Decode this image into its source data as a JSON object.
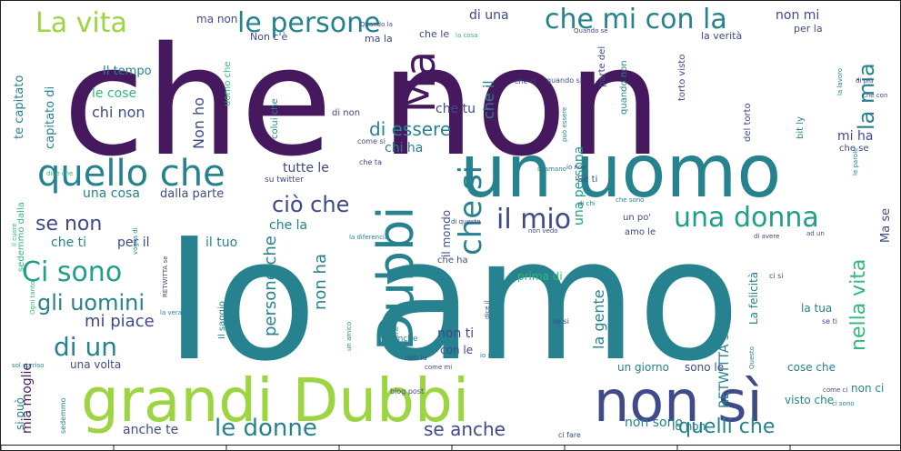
{
  "palette": {
    "dark_purple": "#46195f",
    "indigo": "#3e4a89",
    "blue": "#31688e",
    "teal": "#26828e",
    "teal_green": "#1f9e89",
    "green": "#35b779",
    "light_green": "#6ece58",
    "lime": "#9cd541"
  },
  "words": [
    {
      "text": "che non",
      "color": "dark_purple",
      "size": 165,
      "rotate": 0
    },
    {
      "text": "Io amo",
      "color": "teal",
      "size": 185,
      "rotate": 0
    },
    {
      "text": "un uomo",
      "color": "teal",
      "size": 80,
      "rotate": 0
    },
    {
      "text": "grandi Dubbi",
      "color": "lime",
      "size": 66,
      "rotate": 0
    },
    {
      "text": "non sì",
      "color": "indigo",
      "size": 62,
      "rotate": 0
    },
    {
      "text": "Dubbi",
      "color": "teal",
      "size": 54,
      "rotate": -90
    },
    {
      "text": "quello che",
      "color": "teal",
      "size": 40,
      "rotate": 0
    },
    {
      "text": "Ma",
      "color": "dark_purple",
      "size": 46,
      "rotate": -90
    },
    {
      "text": "La vita",
      "color": "lime",
      "size": 30,
      "rotate": 0
    },
    {
      "text": "le persone",
      "color": "teal",
      "size": 30,
      "rotate": 0
    },
    {
      "text": "che mi con la",
      "color": "teal",
      "size": 30,
      "rotate": 0
    },
    {
      "text": "una donna",
      "color": "teal_green",
      "size": 30,
      "rotate": 0
    },
    {
      "text": "il mio",
      "color": "indigo",
      "size": 30,
      "rotate": 0
    },
    {
      "text": "Ci sono",
      "color": "teal_green",
      "size": 30,
      "rotate": 0
    },
    {
      "text": "ciò che",
      "color": "indigo",
      "size": 24,
      "rotate": 0
    },
    {
      "text": "che si",
      "color": "teal",
      "size": 34,
      "rotate": -90
    },
    {
      "text": "di un",
      "color": "teal",
      "size": 28,
      "rotate": 0
    },
    {
      "text": "gli uomini",
      "color": "teal",
      "size": 24,
      "rotate": 0
    },
    {
      "text": "le donne",
      "color": "teal",
      "size": 26,
      "rotate": 0
    },
    {
      "text": "la mia",
      "color": "teal",
      "size": 24,
      "rotate": -90
    },
    {
      "text": "nella vita",
      "color": "green",
      "size": 22,
      "rotate": -90
    },
    {
      "text": "se non",
      "color": "indigo",
      "size": 22,
      "rotate": 0
    },
    {
      "text": "di essere",
      "color": "teal",
      "size": 20,
      "rotate": 0
    },
    {
      "text": "quelli che",
      "color": "teal",
      "size": 22,
      "rotate": 0
    },
    {
      "text": "se anche",
      "color": "indigo",
      "size": 20,
      "rotate": 0
    },
    {
      "text": "mi piace",
      "color": "indigo",
      "size": 18,
      "rotate": 0
    },
    {
      "text": "persone che",
      "color": "teal",
      "size": 18,
      "rotate": -90
    },
    {
      "text": "la gente",
      "color": "teal",
      "size": 16,
      "rotate": -90
    },
    {
      "text": "non ha",
      "color": "teal",
      "size": 18,
      "rotate": -90
    },
    {
      "text": "mia moglie",
      "color": "dark_purple",
      "size": 14,
      "rotate": -90
    },
    {
      "text": "Non ho",
      "color": "indigo",
      "size": 16,
      "rotate": -90
    },
    {
      "text": "chi non",
      "color": "indigo",
      "size": 16,
      "rotate": 0
    },
    {
      "text": "le cose",
      "color": "green",
      "size": 14,
      "rotate": 0
    },
    {
      "text": "Il tempo",
      "color": "teal",
      "size": 13,
      "rotate": 0
    },
    {
      "text": "tutte le",
      "color": "indigo",
      "size": 14,
      "rotate": 0
    },
    {
      "text": "una cosa",
      "color": "teal",
      "size": 14,
      "rotate": 0
    },
    {
      "text": "dalla parte",
      "color": "indigo",
      "size": 13,
      "rotate": 0
    },
    {
      "text": "chi ha",
      "color": "teal",
      "size": 14,
      "rotate": 0
    },
    {
      "text": "che tu",
      "color": "indigo",
      "size": 14,
      "rotate": 0
    },
    {
      "text": "che il",
      "color": "teal",
      "size": 16,
      "rotate": -90
    },
    {
      "text": "che la",
      "color": "teal",
      "size": 14,
      "rotate": 0
    },
    {
      "text": "che ti",
      "color": "teal",
      "size": 14,
      "rotate": 0
    },
    {
      "text": "per il",
      "color": "indigo",
      "size": 14,
      "rotate": 0
    },
    {
      "text": "il tuo",
      "color": "teal",
      "size": 14,
      "rotate": 0
    },
    {
      "text": "il mondo",
      "color": "indigo",
      "size": 12,
      "rotate": -90
    },
    {
      "text": "una persona",
      "color": "teal_green",
      "size": 14,
      "rotate": -90
    },
    {
      "text": "RETWITTA se",
      "color": "teal",
      "size": 14,
      "rotate": -90
    },
    {
      "text": "La felicità",
      "color": "teal",
      "size": 12,
      "rotate": -90
    },
    {
      "text": "di una",
      "color": "indigo",
      "size": 14,
      "rotate": 0
    },
    {
      "text": "non mi",
      "color": "indigo",
      "size": 14,
      "rotate": 0
    },
    {
      "text": "mi ha",
      "color": "indigo",
      "size": 14,
      "rotate": 0
    },
    {
      "text": "non ti",
      "color": "indigo",
      "size": 14,
      "rotate": 0
    },
    {
      "text": "con le",
      "color": "indigo",
      "size": 12,
      "rotate": 0
    },
    {
      "text": "prima di",
      "color": "green",
      "size": 12,
      "rotate": 0
    },
    {
      "text": "un giorno",
      "color": "teal",
      "size": 12,
      "rotate": 0
    },
    {
      "text": "sono le",
      "color": "indigo",
      "size": 12,
      "rotate": 0
    },
    {
      "text": "cose che",
      "color": "teal",
      "size": 12,
      "rotate": 0
    },
    {
      "text": "visto che",
      "color": "teal",
      "size": 12,
      "rotate": 0
    },
    {
      "text": "non sono",
      "color": "teal",
      "size": 14,
      "rotate": 0
    },
    {
      "text": "Io non",
      "color": "teal",
      "size": 12,
      "rotate": 0
    },
    {
      "text": "anche te",
      "color": "indigo",
      "size": 14,
      "rotate": 0
    },
    {
      "text": "una volta",
      "color": "indigo",
      "size": 12,
      "rotate": 0
    },
    {
      "text": "si può",
      "color": "teal",
      "size": 12,
      "rotate": -90
    },
    {
      "text": "te capitato",
      "color": "teal",
      "size": 13,
      "rotate": -90
    },
    {
      "text": "capitato di",
      "color": "teal",
      "size": 13,
      "rotate": -90
    },
    {
      "text": "la tua",
      "color": "teal",
      "size": 12,
      "rotate": 0
    },
    {
      "text": "non ci",
      "color": "teal",
      "size": 12,
      "rotate": 0
    },
    {
      "text": "Ma se",
      "color": "indigo",
      "size": 13,
      "rotate": -90
    },
    {
      "text": "Non c'è",
      "color": "indigo",
      "size": 11,
      "rotate": 0
    },
    {
      "text": "ma la",
      "color": "indigo",
      "size": 11,
      "rotate": 0
    },
    {
      "text": "ma non",
      "color": "indigo",
      "size": 12,
      "rotate": 0
    },
    {
      "text": "che le",
      "color": "indigo",
      "size": 11,
      "rotate": 0
    },
    {
      "text": "la verità",
      "color": "indigo",
      "size": 11,
      "rotate": 0
    },
    {
      "text": "per la",
      "color": "indigo",
      "size": 11,
      "rotate": 0
    },
    {
      "text": "di non",
      "color": "indigo",
      "size": 10,
      "rotate": 0
    },
    {
      "text": "Se ti",
      "color": "indigo",
      "size": 10,
      "rotate": 0
    },
    {
      "text": "un po'",
      "color": "indigo",
      "size": 10,
      "rotate": 0
    },
    {
      "text": "amo le",
      "color": "indigo",
      "size": 10,
      "rotate": 0
    },
    {
      "text": "che ha",
      "color": "indigo",
      "size": 10,
      "rotate": 0
    },
    {
      "text": "Il saggio",
      "color": "teal",
      "size": 10,
      "rotate": -90
    },
    {
      "text": "che ci",
      "color": "indigo",
      "size": 8,
      "rotate": 0
    },
    {
      "text": "quando non",
      "color": "teal",
      "size": 10,
      "rotate": -90
    },
    {
      "text": "del torto",
      "color": "indigo",
      "size": 10,
      "rotate": -90
    },
    {
      "text": "torto visto",
      "color": "indigo",
      "size": 10,
      "rotate": -90
    },
    {
      "text": "bit ly",
      "color": "teal",
      "size": 10,
      "rotate": -90
    },
    {
      "text": "colui che",
      "color": "teal",
      "size": 10,
      "rotate": -90
    },
    {
      "text": "parte del",
      "color": "indigo",
      "size": 10,
      "rotate": -90
    },
    {
      "text": "che se",
      "color": "indigo",
      "size": 10,
      "rotate": 0
    },
    {
      "text": "uomo che",
      "color": "green",
      "size": 10,
      "rotate": -90
    },
    {
      "text": "sedemmo dalla",
      "color": "green",
      "size": 10,
      "rotate": -90
    },
    {
      "text": "se anche",
      "color": "teal",
      "size": 9,
      "rotate": 0
    },
    {
      "text": "su twitter",
      "color": "indigo",
      "size": 9,
      "rotate": 0
    },
    {
      "text": "che ta",
      "color": "indigo",
      "size": 8,
      "rotate": 0
    },
    {
      "text": "come si",
      "color": "indigo",
      "size": 8,
      "rotate": 0
    },
    {
      "text": "quando si",
      "color": "indigo",
      "size": 8,
      "rotate": 0
    },
    {
      "text": "se si",
      "color": "indigo",
      "size": 8,
      "rotate": 0
    },
    {
      "text": "se ti",
      "color": "indigo",
      "size": 8,
      "rotate": 0
    },
    {
      "text": "ci si",
      "color": "indigo",
      "size": 8,
      "rotate": 0
    },
    {
      "text": "non la",
      "color": "indigo",
      "size": 8,
      "rotate": 0
    },
    {
      "text": "blog post",
      "color": "indigo",
      "size": 8,
      "rotate": 0
    },
    {
      "text": "sedemmo",
      "color": "teal",
      "size": 8,
      "rotate": -90
    },
    {
      "text": "ci fare",
      "color": "indigo",
      "size": 8,
      "rotate": 0
    },
    {
      "text": "Quando la",
      "color": "indigo",
      "size": 7,
      "rotate": 0
    },
    {
      "text": "Quando se",
      "color": "indigo",
      "size": 7,
      "rotate": 0
    },
    {
      "text": "la cosa",
      "color": "green",
      "size": 7,
      "rotate": 0
    },
    {
      "text": "di più",
      "color": "indigo",
      "size": 7,
      "rotate": 0
    },
    {
      "text": "il cuore",
      "color": "green",
      "size": 7,
      "rotate": -90
    },
    {
      "text": "voglia di",
      "color": "teal",
      "size": 7,
      "rotate": -90
    },
    {
      "text": "dice che",
      "color": "green",
      "size": 7,
      "rotate": 0
    },
    {
      "text": "la diferencia",
      "color": "teal",
      "size": 7,
      "rotate": 0
    },
    {
      "text": "di avere",
      "color": "indigo",
      "size": 7,
      "rotate": 0
    },
    {
      "text": "ad un",
      "color": "indigo",
      "size": 7,
      "rotate": 0
    },
    {
      "text": "io sono",
      "color": "teal",
      "size": 7,
      "rotate": 0
    },
    {
      "text": "Ogni tanto",
      "color": "green",
      "size": 7,
      "rotate": -90
    },
    {
      "text": "la vera",
      "color": "teal",
      "size": 7,
      "rotate": 0
    },
    {
      "text": "un amico",
      "color": "teal",
      "size": 7,
      "rotate": -90
    },
    {
      "text": "come ci",
      "color": "indigo",
      "size": 7,
      "rotate": 0
    },
    {
      "text": "ci sono",
      "color": "teal",
      "size": 7,
      "rotate": 0
    },
    {
      "text": "che sono",
      "color": "teal",
      "size": 7,
      "rotate": 0
    },
    {
      "text": "di chi",
      "color": "teal",
      "size": 7,
      "rotate": 0
    },
    {
      "text": "non vedo",
      "color": "indigo",
      "size": 7,
      "rotate": 0
    },
    {
      "text": "sol sorriso",
      "color": "teal",
      "size": 7,
      "rotate": 0
    },
    {
      "text": "RETWITTA se",
      "color": "indigo",
      "size": 7,
      "rotate": -90
    },
    {
      "text": "dice il",
      "color": "indigo",
      "size": 7,
      "rotate": -90
    },
    {
      "text": "può essere",
      "color": "teal",
      "size": 7,
      "rotate": -90
    },
    {
      "text": "voita che",
      "color": "teal",
      "size": 7,
      "rotate": -90
    },
    {
      "text": "come mi",
      "color": "indigo",
      "size": 7,
      "rotate": 0
    },
    {
      "text": "che con",
      "color": "indigo",
      "size": 7,
      "rotate": 0
    },
    {
      "text": "la lavoro",
      "color": "teal",
      "size": 7,
      "rotate": -90
    },
    {
      "text": "le parole",
      "color": "teal",
      "size": 7,
      "rotate": -90
    },
    {
      "text": "Questo",
      "color": "teal",
      "size": 7,
      "rotate": -90
    },
    {
      "text": "si amano",
      "color": "teal",
      "size": 7,
      "rotate": 0
    },
    {
      "text": "io non",
      "color": "indigo",
      "size": 7,
      "rotate": 0
    },
    {
      "text": "di questo",
      "color": "indigo",
      "size": 7,
      "rotate": 0
    }
  ]
}
